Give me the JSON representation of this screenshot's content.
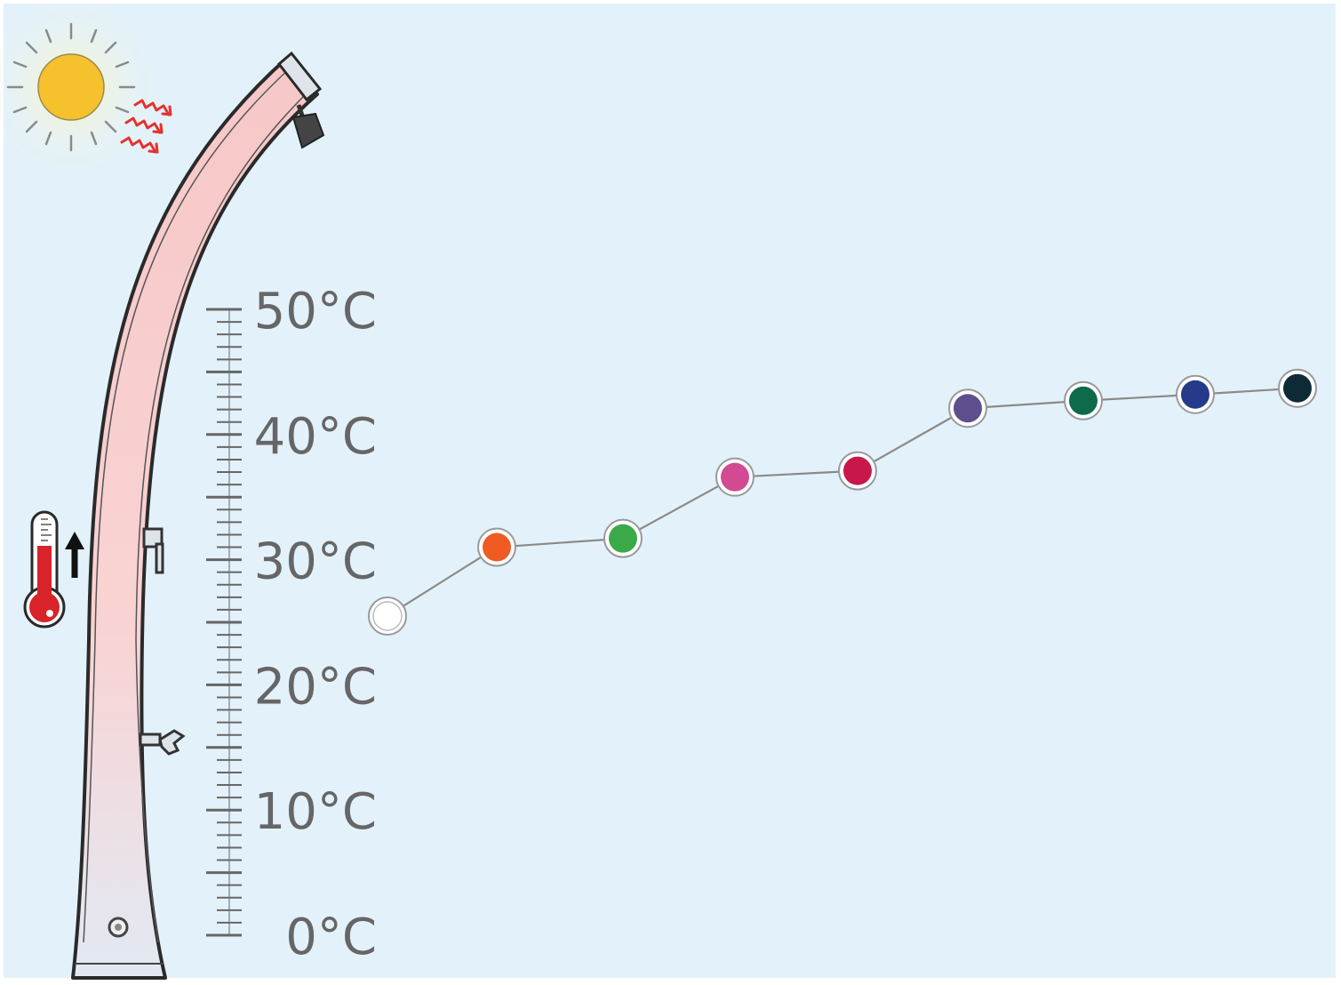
{
  "chart_data": {
    "type": "line",
    "title": "",
    "xlabel": "",
    "ylabel": "",
    "ylim": [
      0,
      50
    ],
    "yticks": [
      0,
      10,
      20,
      30,
      40,
      50
    ],
    "ytick_labels": [
      "0°C",
      "10°C",
      "20°C",
      "30°C",
      "40°C",
      "50°C"
    ],
    "grid": false,
    "legend": "none",
    "series": [
      {
        "values": [
          25.5,
          31,
          31.7,
          36.6,
          37.1,
          42.1,
          42.7,
          43.2,
          43.7
        ],
        "marker_colors": [
          "#ffffff",
          "#f05a23",
          "#3aaa48",
          "#d24b92",
          "#c8174a",
          "#5e4e8e",
          "#0d6b4c",
          "#263a8a",
          "#0f2a37"
        ]
      }
    ],
    "colors": {
      "background": "#e3f2fa",
      "line": "#8a8a8a",
      "tick_label": "#666666",
      "sun": "#f5c22e",
      "heat_arrow": "#e5322d",
      "thermometer": "#d8232a"
    }
  },
  "illustration": {
    "sun_icon": "sun-icon",
    "shower_icon": "solar-shower-icon",
    "thermometer_icon": "thermometer-rising-icon"
  }
}
